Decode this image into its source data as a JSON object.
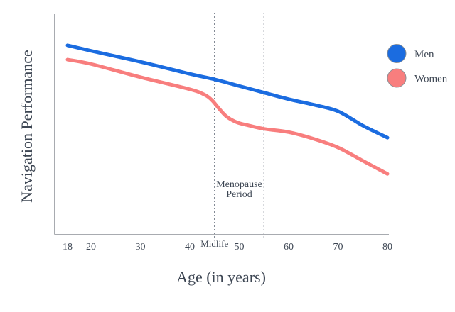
{
  "chart_data": {
    "type": "line",
    "title": "",
    "xlabel": "Age (in years)",
    "ylabel": "Navigation Performance",
    "x_ticks": [
      18,
      20,
      30,
      40,
      50,
      60,
      70,
      80
    ],
    "xlim": [
      18,
      80
    ],
    "ylim": [
      0,
      100
    ],
    "y_tick_labels_shown": false,
    "grid": false,
    "legend_position": "right",
    "series": [
      {
        "name": "Men",
        "color": "#1b6ce0",
        "points": [
          {
            "age": 18,
            "value": 86
          },
          {
            "age": 20,
            "value": 83.5
          },
          {
            "age": 30,
            "value": 78.5
          },
          {
            "age": 40,
            "value": 73
          },
          {
            "age": 45,
            "value": 70.5
          },
          {
            "age": 50,
            "value": 67.5
          },
          {
            "age": 55,
            "value": 64.5
          },
          {
            "age": 60,
            "value": 61.5
          },
          {
            "age": 65,
            "value": 59
          },
          {
            "age": 70,
            "value": 56
          },
          {
            "age": 75,
            "value": 49.5
          },
          {
            "age": 80,
            "value": 44
          }
        ]
      },
      {
        "name": "Women",
        "color": "#f87e7e",
        "points": [
          {
            "age": 18,
            "value": 79.5
          },
          {
            "age": 20,
            "value": 77.5
          },
          {
            "age": 30,
            "value": 71.5
          },
          {
            "age": 40,
            "value": 66
          },
          {
            "age": 43,
            "value": 63.5
          },
          {
            "age": 44.5,
            "value": 61
          },
          {
            "age": 46,
            "value": 57
          },
          {
            "age": 47.5,
            "value": 53.5
          },
          {
            "age": 49.5,
            "value": 51
          },
          {
            "age": 52,
            "value": 49.5
          },
          {
            "age": 55,
            "value": 48
          },
          {
            "age": 60,
            "value": 46.5
          },
          {
            "age": 65,
            "value": 43.5
          },
          {
            "age": 70,
            "value": 39.5
          },
          {
            "age": 75,
            "value": 33.5
          },
          {
            "age": 80,
            "value": 27.5
          }
        ]
      }
    ],
    "annotations": {
      "midlife_label": "Midlife",
      "midlife_age": 45,
      "menopause_line1": "Menopause",
      "menopause_line2": "Period",
      "menopause_start_age": 45,
      "menopause_end_age": 55
    }
  },
  "colors": {
    "text": "#3d4653",
    "axis": "#a8abb0",
    "dashed_line": "#5a6472",
    "men_line": "#1b6ce0",
    "women_line": "#f87e7e",
    "background": "#ffffff"
  }
}
